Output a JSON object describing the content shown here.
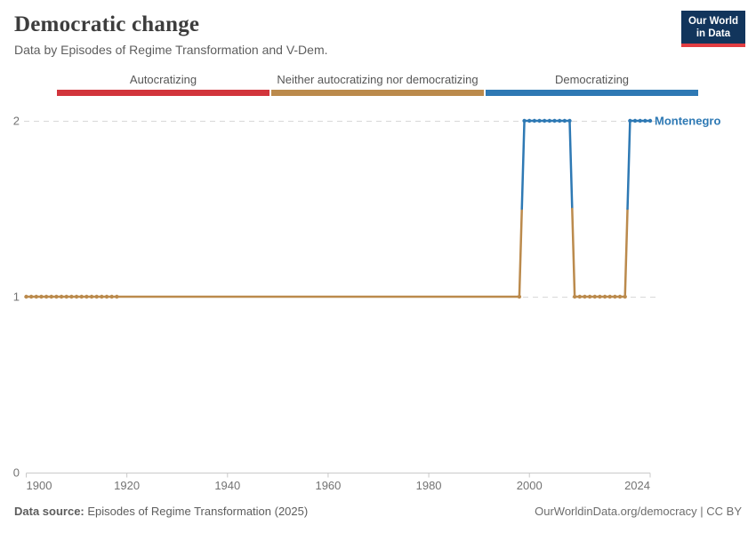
{
  "header": {
    "title": "Democratic change",
    "subtitle": "Data by Episodes of Regime Transformation and V-Dem."
  },
  "logo": {
    "line1": "Our World",
    "line2": "in Data",
    "bg_color": "#12355c",
    "accent_color": "#e23d42"
  },
  "footer": {
    "source_label": "Data source:",
    "source_value": " Episodes of Regime Transformation (2025)",
    "credit": "OurWorldinData.org/democracy | CC BY"
  },
  "chart_data": {
    "type": "line",
    "entity": "Montenegro",
    "entity_color": "#2e79b4",
    "xlim": [
      1900,
      2024
    ],
    "ylim": [
      0,
      2
    ],
    "x_ticks": [
      1900,
      1920,
      1940,
      1960,
      1980,
      2000,
      2024
    ],
    "y_ticks": [
      0,
      1,
      2
    ],
    "grid": "dashed horizontal gridlines at y=1 and y=2, solid axis at y=0",
    "legend": [
      {
        "id": "autocratizing",
        "label": "Autocratizing",
        "color": "#d2353c"
      },
      {
        "id": "neither",
        "label": "Neither autocratizing nor democratizing",
        "color": "#bb8a4c"
      },
      {
        "id": "democratizing",
        "label": "Democratizing",
        "color": "#2e79b4"
      }
    ],
    "value_category": {
      "1": "neither",
      "2": "democratizing"
    },
    "series": [
      {
        "name": "Montenegro",
        "segments": [
          {
            "from_year": 1900,
            "to_year": 1918,
            "value": 1,
            "markers": true
          },
          {
            "from_year": 1998,
            "to_year": 1998,
            "value": 1,
            "markers": true
          },
          {
            "from_year": 1999,
            "to_year": 2008,
            "value": 2,
            "markers": true
          },
          {
            "from_year": 2009,
            "to_year": 2019,
            "value": 1,
            "markers": true
          },
          {
            "from_year": 2020,
            "to_year": 2024,
            "value": 2,
            "markers": true
          }
        ]
      }
    ]
  }
}
